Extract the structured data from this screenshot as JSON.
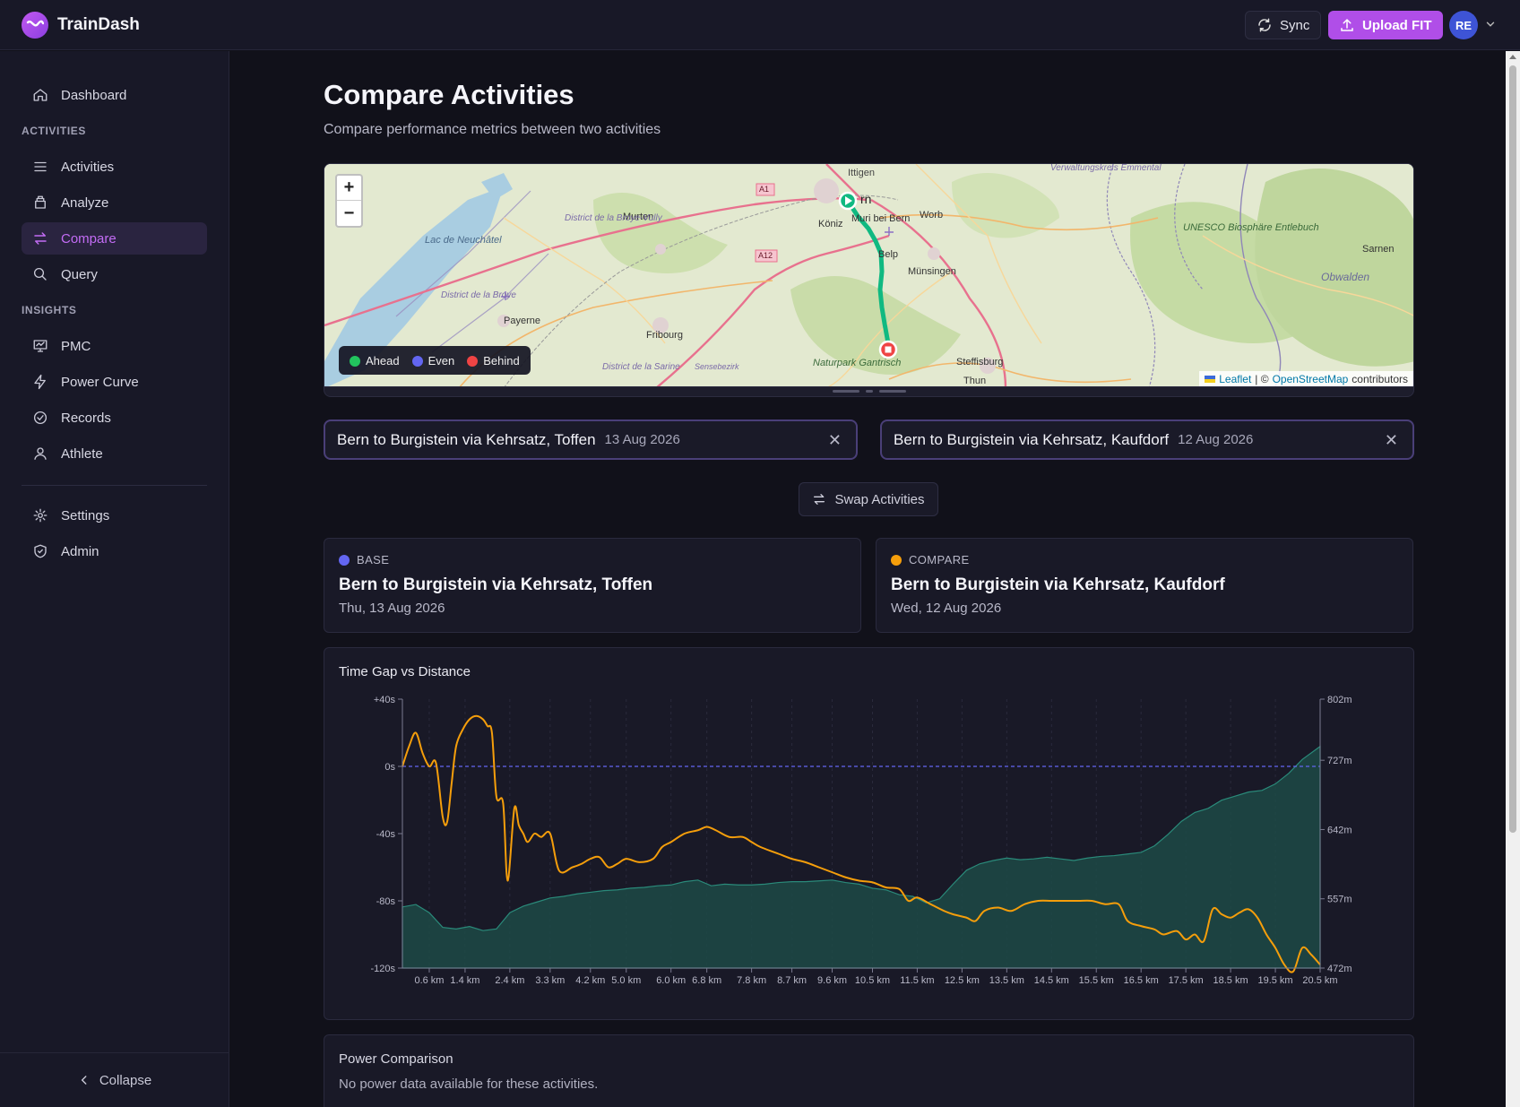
{
  "app": {
    "name": "TrainDash",
    "sync_label": "Sync",
    "upload_label": "Upload FIT",
    "avatar_initials": "RE"
  },
  "sidebar": {
    "items": [
      {
        "label": "Dashboard",
        "icon": "home-icon"
      },
      {
        "label": "Activities",
        "icon": "list-icon"
      },
      {
        "label": "Analyze",
        "icon": "layers-icon"
      },
      {
        "label": "Compare",
        "icon": "swap-icon",
        "active": true
      },
      {
        "label": "Query",
        "icon": "search-icon"
      },
      {
        "label": "PMC",
        "icon": "chart-icon"
      },
      {
        "label": "Power Curve",
        "icon": "bolt-icon"
      },
      {
        "label": "Records",
        "icon": "check-circle-icon"
      },
      {
        "label": "Athlete",
        "icon": "user-icon"
      },
      {
        "label": "Settings",
        "icon": "gear-icon"
      },
      {
        "label": "Admin",
        "icon": "shield-icon"
      }
    ],
    "sections": {
      "activities": "ACTIVITIES",
      "insights": "INSIGHTS"
    },
    "collapse_label": "Collapse"
  },
  "page": {
    "title": "Compare Activities",
    "subtitle": "Compare performance metrics between two activities"
  },
  "map": {
    "legend": {
      "ahead": "Ahead",
      "even": "Even",
      "behind": "Behind"
    },
    "attribution": {
      "leaflet": "Leaflet",
      "sep": "| ©",
      "osm": "OpenStreetMap",
      "contributors": "contributors"
    },
    "place_labels": [
      "Ittigen",
      "rn",
      "Köniz",
      "Muri bei Bern",
      "Worb",
      "Belp",
      "Münsingen",
      "Murten",
      "Lac de Neuchâtel",
      "District de la Broye-Vully",
      "District de la Broye",
      "Payerne",
      "Fribourg",
      "District de la Sarine",
      "Sensebezirk",
      "Naturpark Gantrisch",
      "Steffisburg",
      "Thun",
      "UNESCO Biosphäre Entlebuch",
      "Sarnen",
      "Obwalden",
      "Verwaltungskreis Emmental",
      "A1",
      "A12"
    ],
    "zoom_in": "+",
    "zoom_out": "−",
    "colors": {
      "ahead": "#22c55e",
      "even": "#6366f1",
      "behind": "#ef4444",
      "route": "#10b981"
    }
  },
  "selectors": {
    "base": {
      "name": "Bern to Burgistein via Kehrsatz, Toffen",
      "date": "13 Aug 2026"
    },
    "compare": {
      "name": "Bern to Burgistein via Kehrsatz, Kaufdorf",
      "date": "12 Aug 2026"
    }
  },
  "swap_label": "Swap Activities",
  "cards": {
    "base": {
      "kind": "BASE",
      "title": "Bern to Burgistein via Kehrsatz, Toffen",
      "date": "Thu, 13 Aug 2026",
      "color": "#6366f1"
    },
    "compare": {
      "kind": "COMPARE",
      "title": "Bern to Burgistein via Kehrsatz, Kaufdorf",
      "date": "Wed, 12 Aug 2026",
      "color": "#f59e0b"
    }
  },
  "chart_data": {
    "type": "line",
    "title": "Time Gap vs Distance",
    "x_tick_labels": [
      "0.6 km",
      "1.4 km",
      "2.4 km",
      "3.3 km",
      "4.2 km",
      "5.0 km",
      "6.0 km",
      "6.8 km",
      "7.8 km",
      "8.7 km",
      "9.6 km",
      "10.5 km",
      "11.5 km",
      "12.5 km",
      "13.5 km",
      "14.5 km",
      "15.5 km",
      "16.5 km",
      "17.5 km",
      "18.5 km",
      "19.5 km",
      "20.5 km"
    ],
    "y_left_ticks": [
      "+40s",
      "0s",
      "-40s",
      "-80s",
      "-120s"
    ],
    "y_left_range": [
      -120,
      40
    ],
    "y_right_ticks": [
      "802m",
      "727m",
      "642m",
      "557m",
      "472m"
    ],
    "y_right_range": [
      472,
      802
    ],
    "x_range": [
      0,
      20.5
    ],
    "series": [
      {
        "kind": "time_gap",
        "axis": "left",
        "unit": "s",
        "color": "#f59e0b",
        "x": [
          0.0,
          0.15,
          0.3,
          0.45,
          0.6,
          0.75,
          0.9,
          1.0,
          1.1,
          1.2,
          1.35,
          1.5,
          1.65,
          1.8,
          1.9,
          2.0,
          2.1,
          2.25,
          2.35,
          2.5,
          2.6,
          2.7,
          2.8,
          2.95,
          3.1,
          3.3,
          3.5,
          3.8,
          4.0,
          4.2,
          4.4,
          4.6,
          4.8,
          5.0,
          5.3,
          5.6,
          5.8,
          6.0,
          6.3,
          6.6,
          6.8,
          7.0,
          7.3,
          7.6,
          7.8,
          8.0,
          8.4,
          8.7,
          9.0,
          9.3,
          9.6,
          9.9,
          10.2,
          10.5,
          10.8,
          11.1,
          11.3,
          11.5,
          11.8,
          12.1,
          12.3,
          12.6,
          12.8,
          13.0,
          13.3,
          13.6,
          13.9,
          14.2,
          14.5,
          14.8,
          15.1,
          15.4,
          15.7,
          16.0,
          16.2,
          16.5,
          16.8,
          17.0,
          17.3,
          17.5,
          17.7,
          17.9,
          18.1,
          18.3,
          18.5,
          18.7,
          18.9,
          19.1,
          19.3,
          19.5,
          19.7,
          19.9,
          20.1,
          20.3,
          20.5
        ],
        "y": [
          0,
          12,
          20,
          8,
          0,
          2,
          -30,
          -33,
          -10,
          12,
          22,
          28,
          30,
          28,
          24,
          20,
          -18,
          -22,
          -68,
          -25,
          -35,
          -40,
          -45,
          -40,
          -42,
          -40,
          -62,
          -60,
          -58,
          -55,
          -54,
          -60,
          -58,
          -55,
          -57,
          -55,
          -48,
          -45,
          -40,
          -38,
          -36,
          -38,
          -42,
          -42,
          -45,
          -48,
          -52,
          -55,
          -57,
          -60,
          -63,
          -66,
          -68,
          -69,
          -72,
          -73,
          -80,
          -78,
          -82,
          -86,
          -88,
          -90,
          -92,
          -86,
          -84,
          -86,
          -82,
          -80,
          -80,
          -80,
          -80,
          -80,
          -82,
          -82,
          -92,
          -95,
          -97,
          -100,
          -98,
          -103,
          -100,
          -104,
          -85,
          -88,
          -90,
          -87,
          -85,
          -90,
          -100,
          -108,
          -118,
          -122,
          -108,
          -112,
          -118
        ]
      },
      {
        "kind": "elevation",
        "axis": "right",
        "unit": "m",
        "color": "#14b8a6",
        "x": [
          0.0,
          0.3,
          0.6,
          0.9,
          1.2,
          1.5,
          1.8,
          2.1,
          2.4,
          2.7,
          3.0,
          3.3,
          3.6,
          3.9,
          4.2,
          4.5,
          4.8,
          5.1,
          5.4,
          5.7,
          6.0,
          6.3,
          6.6,
          6.9,
          7.2,
          7.5,
          7.8,
          8.1,
          8.4,
          8.7,
          9.0,
          9.3,
          9.6,
          9.9,
          10.2,
          10.5,
          10.8,
          11.1,
          11.4,
          11.7,
          12.0,
          12.3,
          12.6,
          12.9,
          13.2,
          13.5,
          13.8,
          14.1,
          14.4,
          14.7,
          15.0,
          15.3,
          15.6,
          15.9,
          16.2,
          16.5,
          16.8,
          17.1,
          17.4,
          17.7,
          18.0,
          18.3,
          18.6,
          18.9,
          19.2,
          19.5,
          19.8,
          20.1,
          20.5
        ],
        "y": [
          547,
          550,
          540,
          522,
          520,
          523,
          518,
          520,
          540,
          548,
          553,
          558,
          560,
          563,
          565,
          567,
          568,
          570,
          571,
          573,
          574,
          578,
          580,
          573,
          575,
          574,
          574,
          575,
          577,
          578,
          578,
          579,
          580,
          577,
          575,
          570,
          568,
          562,
          560,
          552,
          557,
          575,
          592,
          600,
          604,
          607,
          605,
          606,
          608,
          606,
          604,
          607,
          609,
          610,
          612,
          614,
          622,
          636,
          652,
          663,
          668,
          678,
          683,
          688,
          690,
          698,
          711,
          728,
          744
        ]
      }
    ],
    "zero_line": 0,
    "ylabel": "",
    "xlabel": ""
  },
  "power": {
    "title": "Power Comparison",
    "message": "No power data available for these activities."
  }
}
